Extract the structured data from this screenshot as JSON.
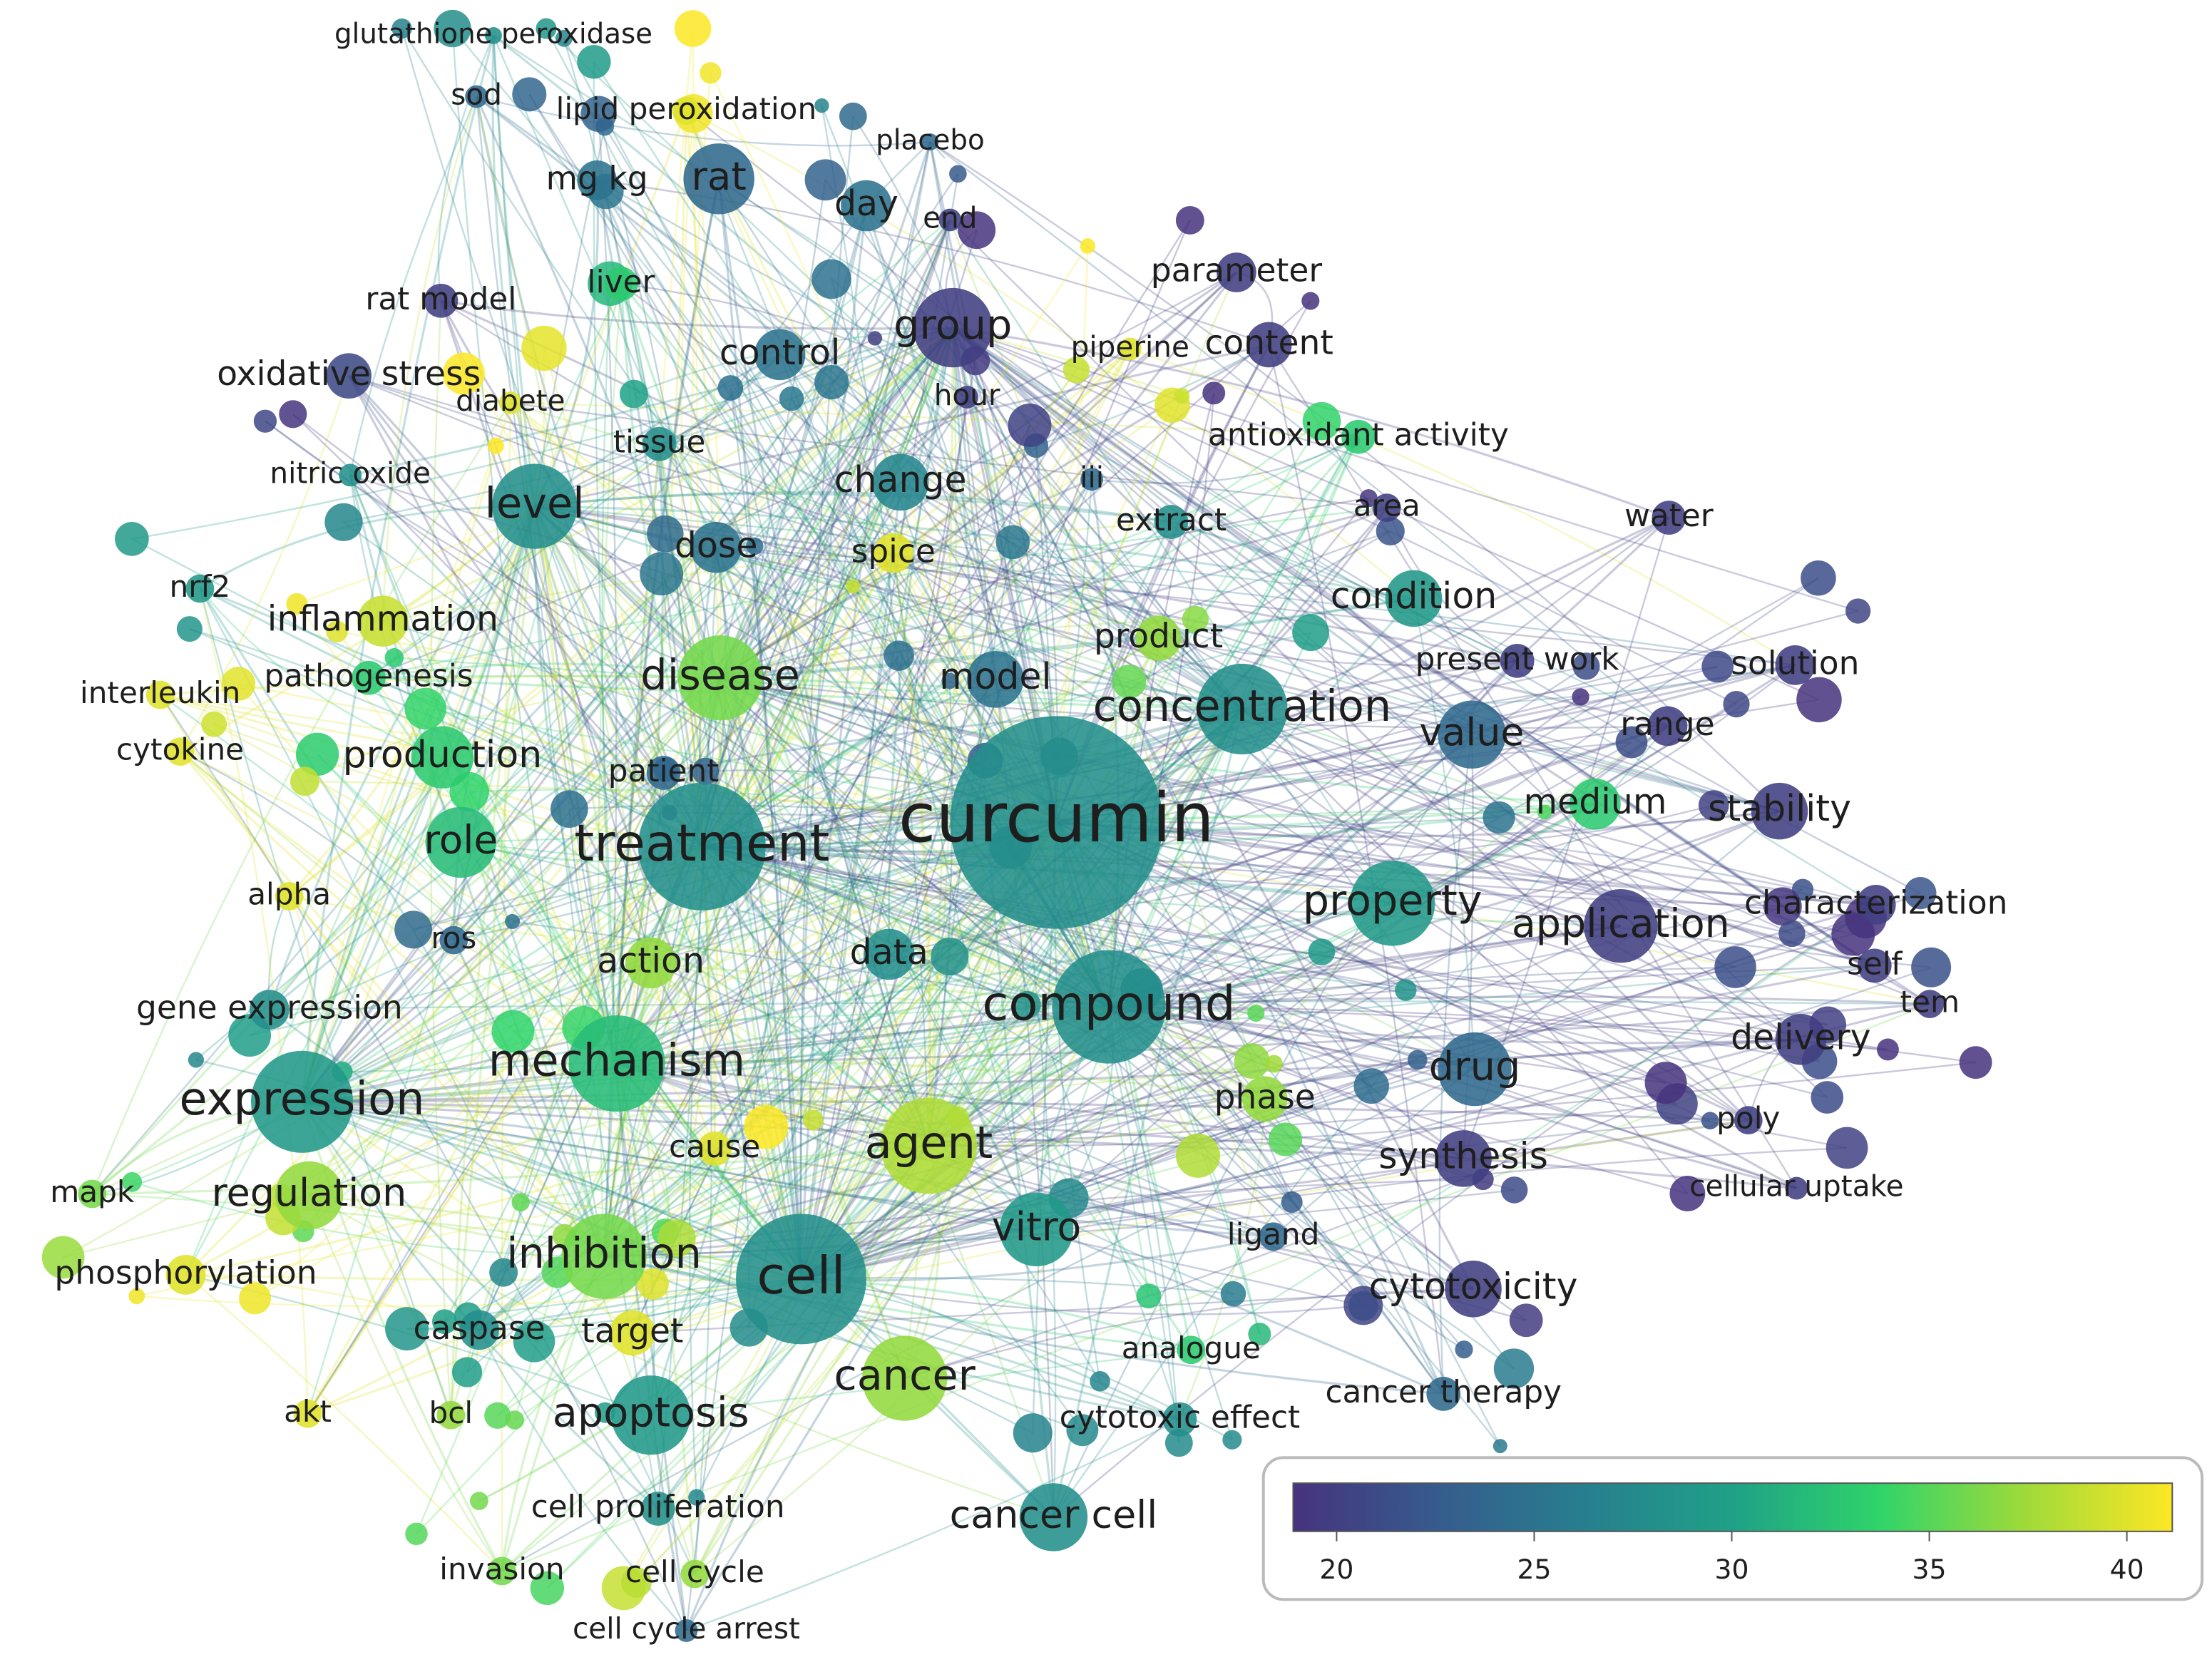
{
  "nodes": [
    {
      "label": "glutathione peroxidase",
      "score": 28
    },
    {
      "label": "sod",
      "score": 24
    },
    {
      "label": "lipid peroxidation",
      "score": 40
    },
    {
      "label": "placebo",
      "score": 24
    },
    {
      "label": "rat",
      "score": 24
    },
    {
      "label": "mg kg",
      "score": 25
    },
    {
      "label": "day",
      "score": 25
    },
    {
      "label": "end",
      "score": 20
    },
    {
      "label": "parameter",
      "score": 20
    },
    {
      "label": "rat model",
      "score": 20
    },
    {
      "label": "liver",
      "score": 33
    },
    {
      "label": "group",
      "score": 20
    },
    {
      "label": "piperine",
      "score": 40
    },
    {
      "label": "content",
      "score": 20
    },
    {
      "label": "oxidative stress",
      "score": 21
    },
    {
      "label": "control",
      "score": 25
    },
    {
      "label": "hour",
      "score": 20
    },
    {
      "label": "diabete",
      "score": 40
    },
    {
      "label": "tissue",
      "score": 28
    },
    {
      "label": "antioxidant activity",
      "score": 33
    },
    {
      "label": "nitric oxide",
      "score": 28
    },
    {
      "label": "level",
      "score": 28
    },
    {
      "label": "change",
      "score": 27
    },
    {
      "label": "iii",
      "score": 24
    },
    {
      "label": "extract",
      "score": 28
    },
    {
      "label": "area",
      "score": 20
    },
    {
      "label": "water",
      "score": 20
    },
    {
      "label": "dose",
      "score": 25
    },
    {
      "label": "spice",
      "score": 40
    },
    {
      "label": "nrf2",
      "score": 29
    },
    {
      "label": "inflammation",
      "score": 39
    },
    {
      "label": "condition",
      "score": 29
    },
    {
      "label": "product",
      "score": 37
    },
    {
      "label": "pathogenesis",
      "score": 33
    },
    {
      "label": "disease",
      "score": 36
    },
    {
      "label": "model",
      "score": 25
    },
    {
      "label": "present work",
      "score": 20
    },
    {
      "label": "solution",
      "score": 20
    },
    {
      "label": "interleukin",
      "score": 40
    },
    {
      "label": "concentration",
      "score": 28
    },
    {
      "label": "value",
      "score": 24
    },
    {
      "label": "range",
      "score": 20
    },
    {
      "label": "cytokine",
      "score": 40
    },
    {
      "label": "production",
      "score": 33
    },
    {
      "label": "patient",
      "score": 24
    },
    {
      "label": "medium",
      "score": 33
    },
    {
      "label": "stability",
      "score": 20
    },
    {
      "label": "curcumin",
      "score": 28
    },
    {
      "label": "treatment",
      "score": 28
    },
    {
      "label": "role",
      "score": 32
    },
    {
      "label": "property",
      "score": 29
    },
    {
      "label": "alpha",
      "score": 40
    },
    {
      "label": "characterization",
      "score": 20
    },
    {
      "label": "application",
      "score": 20
    },
    {
      "label": "ros",
      "score": 24
    },
    {
      "label": "action",
      "score": 37
    },
    {
      "label": "data",
      "score": 28
    },
    {
      "label": "self",
      "score": 20
    },
    {
      "label": "tem",
      "score": 20
    },
    {
      "label": "compound",
      "score": 28
    },
    {
      "label": "gene expression",
      "score": 28
    },
    {
      "label": "delivery",
      "score": 20
    },
    {
      "label": "mechanism",
      "score": 32
    },
    {
      "label": "drug",
      "score": 24
    },
    {
      "label": "expression",
      "score": 29
    },
    {
      "label": "phase",
      "score": 37
    },
    {
      "label": "poly",
      "score": 20
    },
    {
      "label": "agent",
      "score": 38
    },
    {
      "label": "cause",
      "score": 40
    },
    {
      "label": "synthesis",
      "score": 20
    },
    {
      "label": "regulation",
      "score": 37
    },
    {
      "label": "mapk",
      "score": 36
    },
    {
      "label": "cellular uptake",
      "score": 20
    },
    {
      "label": "vitro",
      "score": 29
    },
    {
      "label": "ligand",
      "score": 24
    },
    {
      "label": "inhibition",
      "score": 36
    },
    {
      "label": "phosphorylation",
      "score": 40
    },
    {
      "label": "cell",
      "score": 28
    },
    {
      "label": "cytotoxicity",
      "score": 20
    },
    {
      "label": "caspase",
      "score": 28
    },
    {
      "label": "target",
      "score": 40
    },
    {
      "label": "analogue",
      "score": 33
    },
    {
      "label": "cancer",
      "score": 37
    },
    {
      "label": "cancer therapy",
      "score": 24
    },
    {
      "label": "akt",
      "score": 40
    },
    {
      "label": "bcl",
      "score": 37
    },
    {
      "label": "apoptosis",
      "score": 29
    },
    {
      "label": "cytotoxic effect",
      "score": 28
    },
    {
      "label": "cell proliferation",
      "score": 28
    },
    {
      "label": "cancer cell",
      "score": 28
    },
    {
      "label": "invasion",
      "score": 36
    },
    {
      "label": "cell cycle",
      "score": 37
    },
    {
      "label": "cell cycle arrest",
      "score": 24
    }
  ],
  "colorbar": {
    "range": [
      18.9,
      41.15
    ],
    "ticks": [
      20,
      25,
      30,
      35,
      40
    ],
    "colors": [
      "#46337e",
      "#365c8d",
      "#277f8e",
      "#1fa187",
      "#2fd46a",
      "#a0da39",
      "#fde725"
    ]
  }
}
